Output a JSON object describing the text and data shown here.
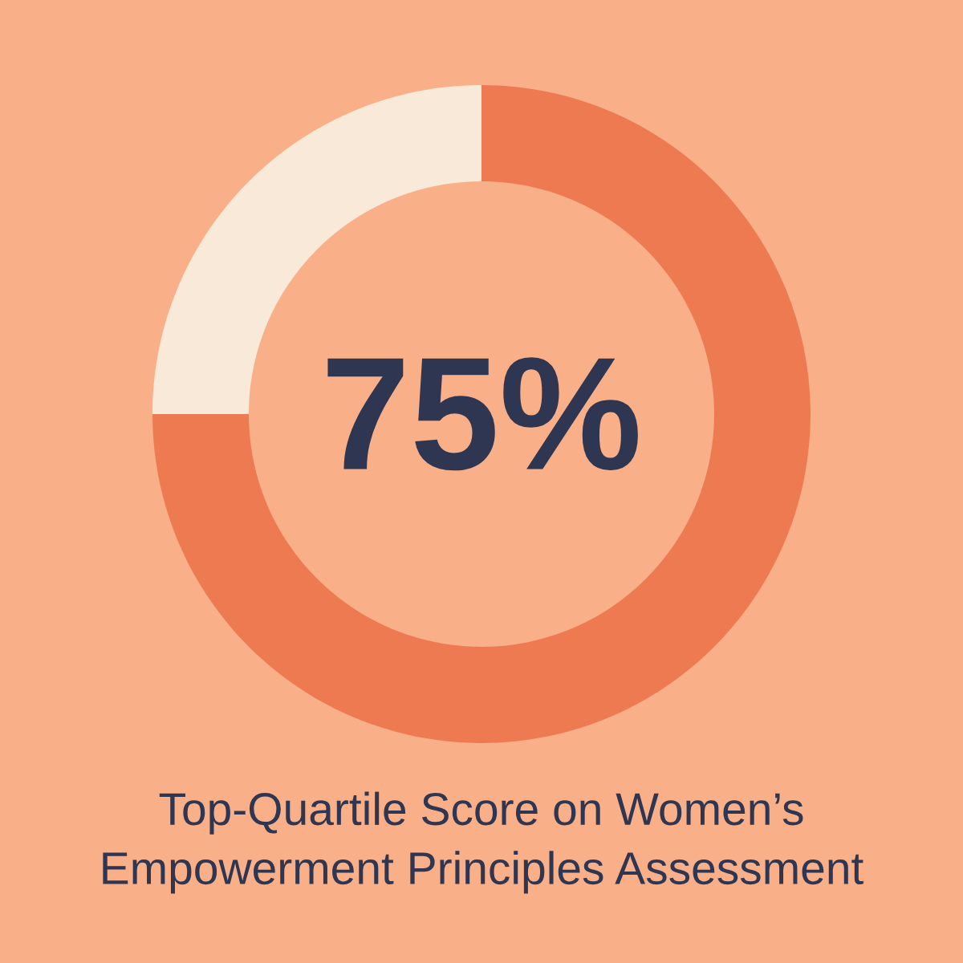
{
  "chart_data": {
    "type": "donut",
    "title": "Top-Quartile Score on Women’s\nEmpowerment Principles Assessment",
    "categories": [
      null,
      null
    ],
    "values": [
      75,
      25
    ],
    "colors": [
      "#ee7a52",
      "#f9e9d9"
    ],
    "value_labels": [
      "75%",
      null
    ]
  }
}
